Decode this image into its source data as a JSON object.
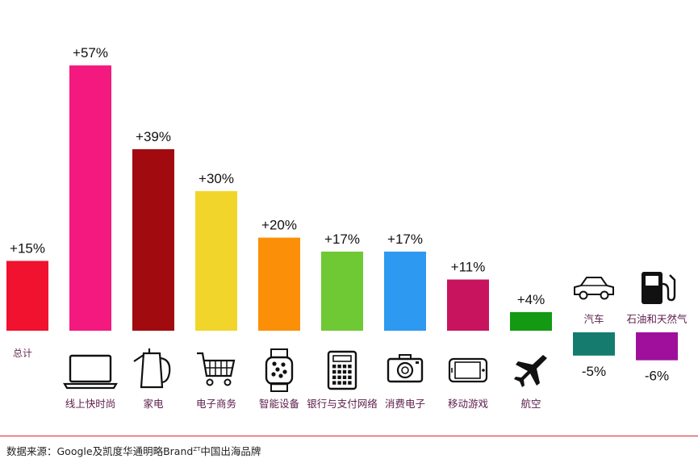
{
  "chart_data": {
    "type": "bar",
    "categories": [
      "总计",
      "线上快时尚",
      "家电",
      "电子商务",
      "智能设备",
      "银行与支付网络",
      "消费电子",
      "移动游戏",
      "航空",
      "汽车",
      "石油和天然气"
    ],
    "values": [
      15,
      57,
      39,
      30,
      20,
      17,
      17,
      11,
      4,
      -5,
      -6
    ],
    "value_labels": [
      "+15%",
      "+57%",
      "+39%",
      "+30%",
      "+20%",
      "+17%",
      "+17%",
      "+11%",
      "+4%",
      "-5%",
      "-6%"
    ],
    "colors": [
      "#f0122f",
      "#f3197f",
      "#a10b10",
      "#f2d52a",
      "#fb8f08",
      "#6fc934",
      "#2e99f0",
      "#c8145f",
      "#139a12",
      "#157b6f",
      "#a00f9b"
    ],
    "icons": [
      null,
      "laptop-icon",
      "kettle-icon",
      "shopping-cart-icon",
      "smartwatch-icon",
      "calculator-icon",
      "camera-icon",
      "mobile-phone-icon",
      "airplane-icon",
      "car-icon",
      "fuel-pump-icon"
    ],
    "unit": "%",
    "grid": false,
    "legend": "none"
  },
  "source": {
    "prefix": "数据来源：Google及凯度华通明略Brand",
    "superscript": "ZT",
    "suffix": "中国出海品牌"
  }
}
